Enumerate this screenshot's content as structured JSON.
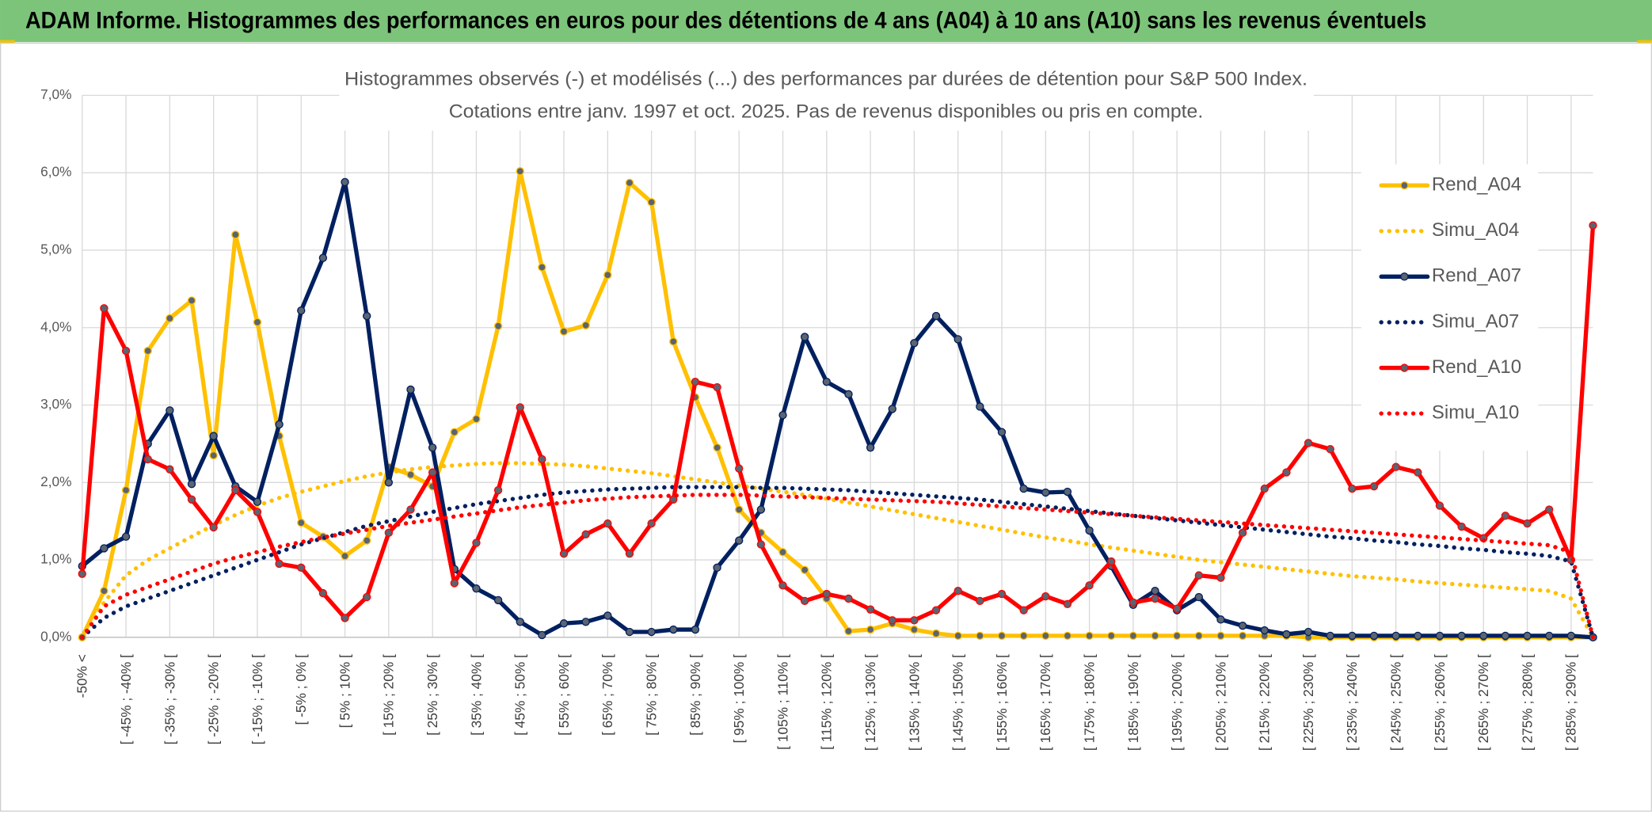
{
  "header": "ADAM Informe. Histogrammes des performances en euros pour des détentions de 4 ans (A04) à 10 ans (A10) sans les revenus éventuels",
  "chart_data": {
    "type": "line",
    "title": "Histogrammes observés (-) et modélisés (...) des performances par durées de détention pour S&P 500 Index.",
    "subtitle": "Cotations entre janv. 1997 et oct. 2025. Pas de revenus disponibles ou pris en compte.",
    "categories": [
      "-50% <",
      null,
      "[ -45% ; -40% [",
      null,
      "[ -35% ; -30% [",
      null,
      "[ -25% ; -20% [",
      null,
      "[ -15% ; -10% [",
      null,
      "[ -5% ; 0% [",
      null,
      "[ 5% ; 10% [",
      null,
      "[ 15% ; 20% [",
      null,
      "[ 25% ; 30% [",
      null,
      "[ 35% ; 40% [",
      null,
      "[ 45% ; 50% [",
      null,
      "[ 55% ; 60% [",
      null,
      "[ 65% ; 70% [",
      null,
      "[ 75% ; 80% [",
      null,
      "[ 85% ; 90% [",
      null,
      "[ 95% ; 100% [",
      null,
      "[ 105% ; 110% [",
      null,
      "[ 115% ; 120% [",
      null,
      "[ 125% ; 130% [",
      null,
      "[ 135% ; 140% [",
      null,
      "[ 145% ; 150% [",
      null,
      "[ 155% ; 160% [",
      null,
      "[ 165% ; 170% [",
      null,
      "[ 175% ; 180% [",
      null,
      "[ 185% ; 190% [",
      null,
      "[ 195% ; 200% [",
      null,
      "[ 205% ; 210% [",
      null,
      "[ 215% ; 220% [",
      null,
      "[ 225% ; 230% [",
      null,
      "[ 235% ; 240% [",
      null,
      "[ 245% ; 250% [",
      null,
      "[ 255% ; 260% [",
      null,
      "[ 265% ; 270% [",
      null,
      "[ 275% ; 280% [",
      null,
      "[ 285% ; 290% [",
      null
    ],
    "ylim": [
      0,
      7
    ],
    "yticks": [
      {
        "value": 0,
        "label": "0,0%"
      },
      {
        "value": 1,
        "label": "1,0%"
      },
      {
        "value": 2,
        "label": "2,0%"
      },
      {
        "value": 3,
        "label": "3,0%"
      },
      {
        "value": 4,
        "label": "4,0%"
      },
      {
        "value": 5,
        "label": "5,0%"
      },
      {
        "value": 6,
        "label": "6,0%"
      },
      {
        "value": 7,
        "label": "7,0%"
      }
    ],
    "grid": true,
    "legend": "right",
    "series": [
      {
        "name": "Rend_A04",
        "color": "#ffc000",
        "style": "solid",
        "markers": true,
        "values": [
          0,
          0.6,
          1.9,
          3.7,
          4.12,
          4.35,
          2.35,
          5.2,
          4.07,
          2.6,
          1.48,
          1.3,
          1.05,
          1.25,
          2.2,
          2.1,
          1.95,
          2.65,
          2.82,
          4.02,
          6.02,
          4.78,
          3.95,
          4.03,
          4.68,
          5.87,
          5.62,
          3.82,
          3.1,
          2.45,
          1.65,
          1.35,
          1.1,
          0.87,
          0.5,
          0.08,
          0.1,
          0.18,
          0.1,
          0.05,
          0.02,
          0.02,
          0.02,
          0.02,
          0.02,
          0.02,
          0.02,
          0.02,
          0.02,
          0.02,
          0.02,
          0.02,
          0.02,
          0.02,
          0.02,
          0.02,
          0,
          0,
          0,
          0,
          0,
          0,
          0,
          0,
          0,
          0,
          0,
          0,
          0,
          0
        ]
      },
      {
        "name": "Simu_A04",
        "color": "#ffc000",
        "style": "dotted",
        "markers": false,
        "values": [
          0,
          0.45,
          0.8,
          1.0,
          1.15,
          1.3,
          1.45,
          1.58,
          1.7,
          1.8,
          1.88,
          1.95,
          2.02,
          2.08,
          2.13,
          2.17,
          2.2,
          2.22,
          2.24,
          2.25,
          2.25,
          2.24,
          2.23,
          2.21,
          2.18,
          2.15,
          2.12,
          2.08,
          2.04,
          2.0,
          1.96,
          1.92,
          1.88,
          1.84,
          1.79,
          1.74,
          1.69,
          1.64,
          1.59,
          1.54,
          1.49,
          1.44,
          1.39,
          1.34,
          1.29,
          1.25,
          1.2,
          1.16,
          1.12,
          1.08,
          1.04,
          1.0,
          0.97,
          0.94,
          0.91,
          0.88,
          0.85,
          0.82,
          0.79,
          0.77,
          0.75,
          0.72,
          0.7,
          0.68,
          0.66,
          0.64,
          0.62,
          0.6,
          0.5,
          0
        ]
      },
      {
        "name": "Rend_A07",
        "color": "#002060",
        "style": "solid",
        "markers": true,
        "values": [
          0.92,
          1.15,
          1.3,
          2.5,
          2.93,
          1.98,
          2.6,
          1.95,
          1.75,
          2.75,
          4.22,
          4.9,
          5.88,
          4.15,
          2.0,
          3.2,
          2.45,
          0.88,
          0.63,
          0.48,
          0.2,
          0.03,
          0.18,
          0.2,
          0.28,
          0.07,
          0.07,
          0.1,
          0.1,
          0.9,
          1.25,
          1.65,
          2.87,
          3.88,
          3.3,
          3.14,
          2.45,
          2.95,
          3.8,
          4.15,
          3.85,
          2.98,
          2.65,
          1.92,
          1.87,
          1.88,
          1.38,
          0.92,
          0.42,
          0.6,
          0.35,
          0.52,
          0.23,
          0.15,
          0.09,
          0.04,
          0.07,
          0.02,
          0.02,
          0.02,
          0.02,
          0.02,
          0.02,
          0.02,
          0.02,
          0.02,
          0.02,
          0.02,
          0.02,
          0
        ]
      },
      {
        "name": "Simu_A07",
        "color": "#002060",
        "style": "dotted",
        "markers": false,
        "values": [
          0,
          0.25,
          0.4,
          0.5,
          0.6,
          0.7,
          0.8,
          0.9,
          1.0,
          1.1,
          1.2,
          1.28,
          1.36,
          1.44,
          1.5,
          1.56,
          1.62,
          1.67,
          1.72,
          1.76,
          1.8,
          1.84,
          1.87,
          1.89,
          1.91,
          1.92,
          1.93,
          1.94,
          1.94,
          1.94,
          1.94,
          1.93,
          1.93,
          1.92,
          1.91,
          1.9,
          1.88,
          1.86,
          1.84,
          1.82,
          1.8,
          1.78,
          1.75,
          1.72,
          1.69,
          1.66,
          1.63,
          1.6,
          1.57,
          1.54,
          1.51,
          1.48,
          1.45,
          1.42,
          1.39,
          1.36,
          1.33,
          1.3,
          1.28,
          1.25,
          1.23,
          1.2,
          1.18,
          1.15,
          1.13,
          1.1,
          1.08,
          1.05,
          0.98,
          0
        ]
      },
      {
        "name": "Rend_A10",
        "color": "#ff0000",
        "style": "solid",
        "markers": true,
        "values": [
          0.82,
          4.25,
          3.7,
          2.3,
          2.17,
          1.78,
          1.42,
          1.9,
          1.62,
          0.95,
          0.9,
          0.57,
          0.25,
          0.52,
          1.35,
          1.65,
          2.13,
          0.7,
          1.22,
          1.9,
          2.97,
          2.3,
          1.08,
          1.33,
          1.47,
          1.08,
          1.47,
          1.78,
          3.3,
          3.23,
          2.18,
          1.2,
          0.67,
          0.47,
          0.56,
          0.5,
          0.36,
          0.22,
          0.22,
          0.35,
          0.6,
          0.47,
          0.56,
          0.35,
          0.53,
          0.43,
          0.67,
          0.98,
          0.45,
          0.5,
          0.37,
          0.8,
          0.77,
          1.35,
          1.92,
          2.13,
          2.51,
          2.43,
          1.92,
          1.95,
          2.2,
          2.13,
          1.7,
          1.43,
          1.28,
          1.57,
          1.47,
          1.65,
          1.0,
          5.32
        ]
      },
      {
        "name": "Simu_A10",
        "color": "#ff0000",
        "style": "dotted",
        "markers": false,
        "values": [
          0,
          0.4,
          0.55,
          0.65,
          0.75,
          0.85,
          0.95,
          1.03,
          1.1,
          1.17,
          1.23,
          1.29,
          1.34,
          1.39,
          1.44,
          1.48,
          1.52,
          1.56,
          1.6,
          1.64,
          1.68,
          1.71,
          1.74,
          1.77,
          1.79,
          1.81,
          1.82,
          1.83,
          1.84,
          1.84,
          1.84,
          1.83,
          1.82,
          1.81,
          1.8,
          1.79,
          1.78,
          1.77,
          1.76,
          1.75,
          1.73,
          1.71,
          1.69,
          1.67,
          1.65,
          1.63,
          1.61,
          1.59,
          1.57,
          1.55,
          1.53,
          1.51,
          1.49,
          1.47,
          1.45,
          1.43,
          1.41,
          1.39,
          1.37,
          1.35,
          1.33,
          1.31,
          1.29,
          1.27,
          1.25,
          1.23,
          1.21,
          1.19,
          1.1,
          0
        ]
      }
    ]
  }
}
